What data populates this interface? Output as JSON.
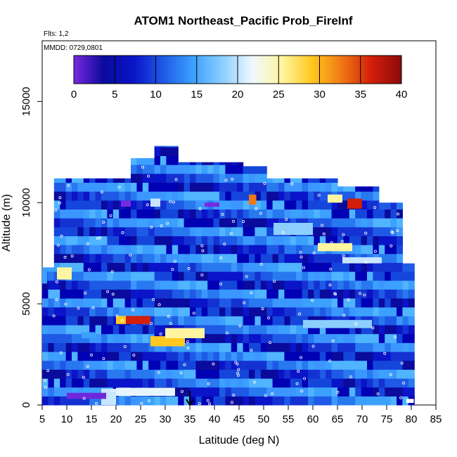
{
  "chart_data": {
    "type": "heatmap",
    "title": "ATOM1 Northeast_Pacific Prob_FireInf",
    "flights_label": "Flts: 1,2",
    "dates_label": "MMDD: 0729,0801",
    "xlabel": "Latitude (deg N)",
    "ylabel": "Altitude (m)",
    "xlim": [
      5,
      85
    ],
    "ylim": [
      0,
      18000
    ],
    "x_ticks": [
      "5",
      "10",
      "15",
      "20",
      "25",
      "30",
      "35",
      "40",
      "45",
      "50",
      "55",
      "60",
      "65",
      "70",
      "75",
      "80",
      "85"
    ],
    "y_ticks": [
      "0",
      "5000",
      "10000",
      "15000"
    ],
    "colorbar": {
      "range": [
        0,
        40
      ],
      "ticks": [
        "0",
        "5",
        "10",
        "15",
        "20",
        "25",
        "30",
        "35",
        "40"
      ],
      "colors": [
        "#7a28e0",
        "#0a0a9c",
        "#0a14c8",
        "#1e5ae6",
        "#3ca0ff",
        "#8ccfff",
        "#f0f8ff",
        "#fff5a0",
        "#ffc81e",
        "#f07814",
        "#d21e0a",
        "#8c0a0a"
      ]
    },
    "arrow_marker": {
      "latitude": 35,
      "altitude": 0
    },
    "colors": {
      "low": "#1040dc",
      "deep": "#0a0a9c",
      "mid": "#3ca0ff",
      "high": "#d21e0a"
    },
    "grid": false
  }
}
